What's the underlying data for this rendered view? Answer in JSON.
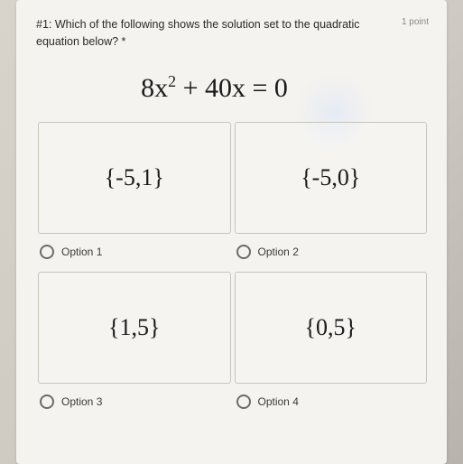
{
  "question": {
    "prompt": "#1: Which of the following shows the solution set to the quadratic equation below? *",
    "points": "1 point",
    "equation_prefix": "8x",
    "equation_exp": "2",
    "equation_suffix": " + 40x = 0"
  },
  "options": [
    {
      "value": "{-5,1}",
      "label": "Option 1"
    },
    {
      "value": "{-5,0}",
      "label": "Option 2"
    },
    {
      "value": "{1,5}",
      "label": "Option 3"
    },
    {
      "value": "{0,5}",
      "label": "Option 4"
    }
  ],
  "styling": {
    "card_bg": "#f5f3ef",
    "body_bg_start": "#d8d4cc",
    "body_bg_end": "#b8b4ac",
    "border_color": "#c8c4bc",
    "text_color": "#1a1a1a",
    "muted_color": "#888",
    "radio_border": "#6b6b6b",
    "equation_fontsize": 30,
    "option_value_fontsize": 26,
    "question_fontsize": 12.5,
    "label_fontsize": 12,
    "option_box_height": 124
  }
}
